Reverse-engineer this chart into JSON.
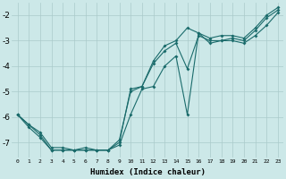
{
  "xlabel": "Humidex (Indice chaleur)",
  "bg_color": "#cce8e8",
  "grid_color": "#aacaca",
  "line_color": "#1a6b6b",
  "xlim": [
    -0.5,
    23.5
  ],
  "ylim": [
    -7.6,
    -1.5
  ],
  "yticks": [
    -7,
    -6,
    -5,
    -4,
    -3,
    -2
  ],
  "xticks": [
    0,
    1,
    2,
    3,
    4,
    5,
    6,
    7,
    8,
    9,
    10,
    11,
    12,
    13,
    14,
    15,
    16,
    17,
    18,
    19,
    20,
    21,
    22,
    23
  ],
  "line1_x": [
    0,
    1,
    2,
    3,
    4,
    5,
    6,
    7,
    8,
    9,
    10,
    11,
    12,
    13,
    14,
    15,
    16,
    17,
    18,
    19,
    20,
    21,
    22,
    23
  ],
  "line1_y": [
    -5.9,
    -6.3,
    -6.6,
    -7.2,
    -7.2,
    -7.3,
    -7.2,
    -7.3,
    -7.3,
    -6.9,
    -5.0,
    -4.8,
    -3.9,
    -3.4,
    -3.1,
    -4.1,
    -2.8,
    -3.0,
    -3.0,
    -2.9,
    -3.0,
    -2.6,
    -2.1,
    -1.8
  ],
  "line2_x": [
    0,
    1,
    2,
    3,
    4,
    5,
    6,
    7,
    8,
    9,
    10,
    11,
    12,
    13,
    14,
    15,
    16,
    17,
    18,
    19,
    20,
    21,
    22,
    23
  ],
  "line2_y": [
    -5.9,
    -6.4,
    -6.8,
    -7.3,
    -7.3,
    -7.3,
    -7.3,
    -7.3,
    -7.3,
    -7.0,
    -4.9,
    -4.8,
    -3.8,
    -3.2,
    -3.0,
    -2.5,
    -2.7,
    -2.9,
    -2.8,
    -2.8,
    -2.9,
    -2.5,
    -2.0,
    -1.7
  ],
  "line3_x": [
    0,
    1,
    2,
    3,
    4,
    5,
    6,
    7,
    8,
    9,
    10,
    11,
    12,
    13,
    14,
    15,
    16,
    17,
    18,
    19,
    20,
    21,
    22,
    23
  ],
  "line3_y": [
    -5.9,
    -6.3,
    -6.7,
    -7.3,
    -7.3,
    -7.3,
    -7.3,
    -7.3,
    -7.3,
    -7.1,
    -5.9,
    -4.9,
    -4.8,
    -4.0,
    -3.6,
    -5.9,
    -2.7,
    -3.1,
    -3.0,
    -3.0,
    -3.1,
    -2.8,
    -2.4,
    -1.9
  ]
}
